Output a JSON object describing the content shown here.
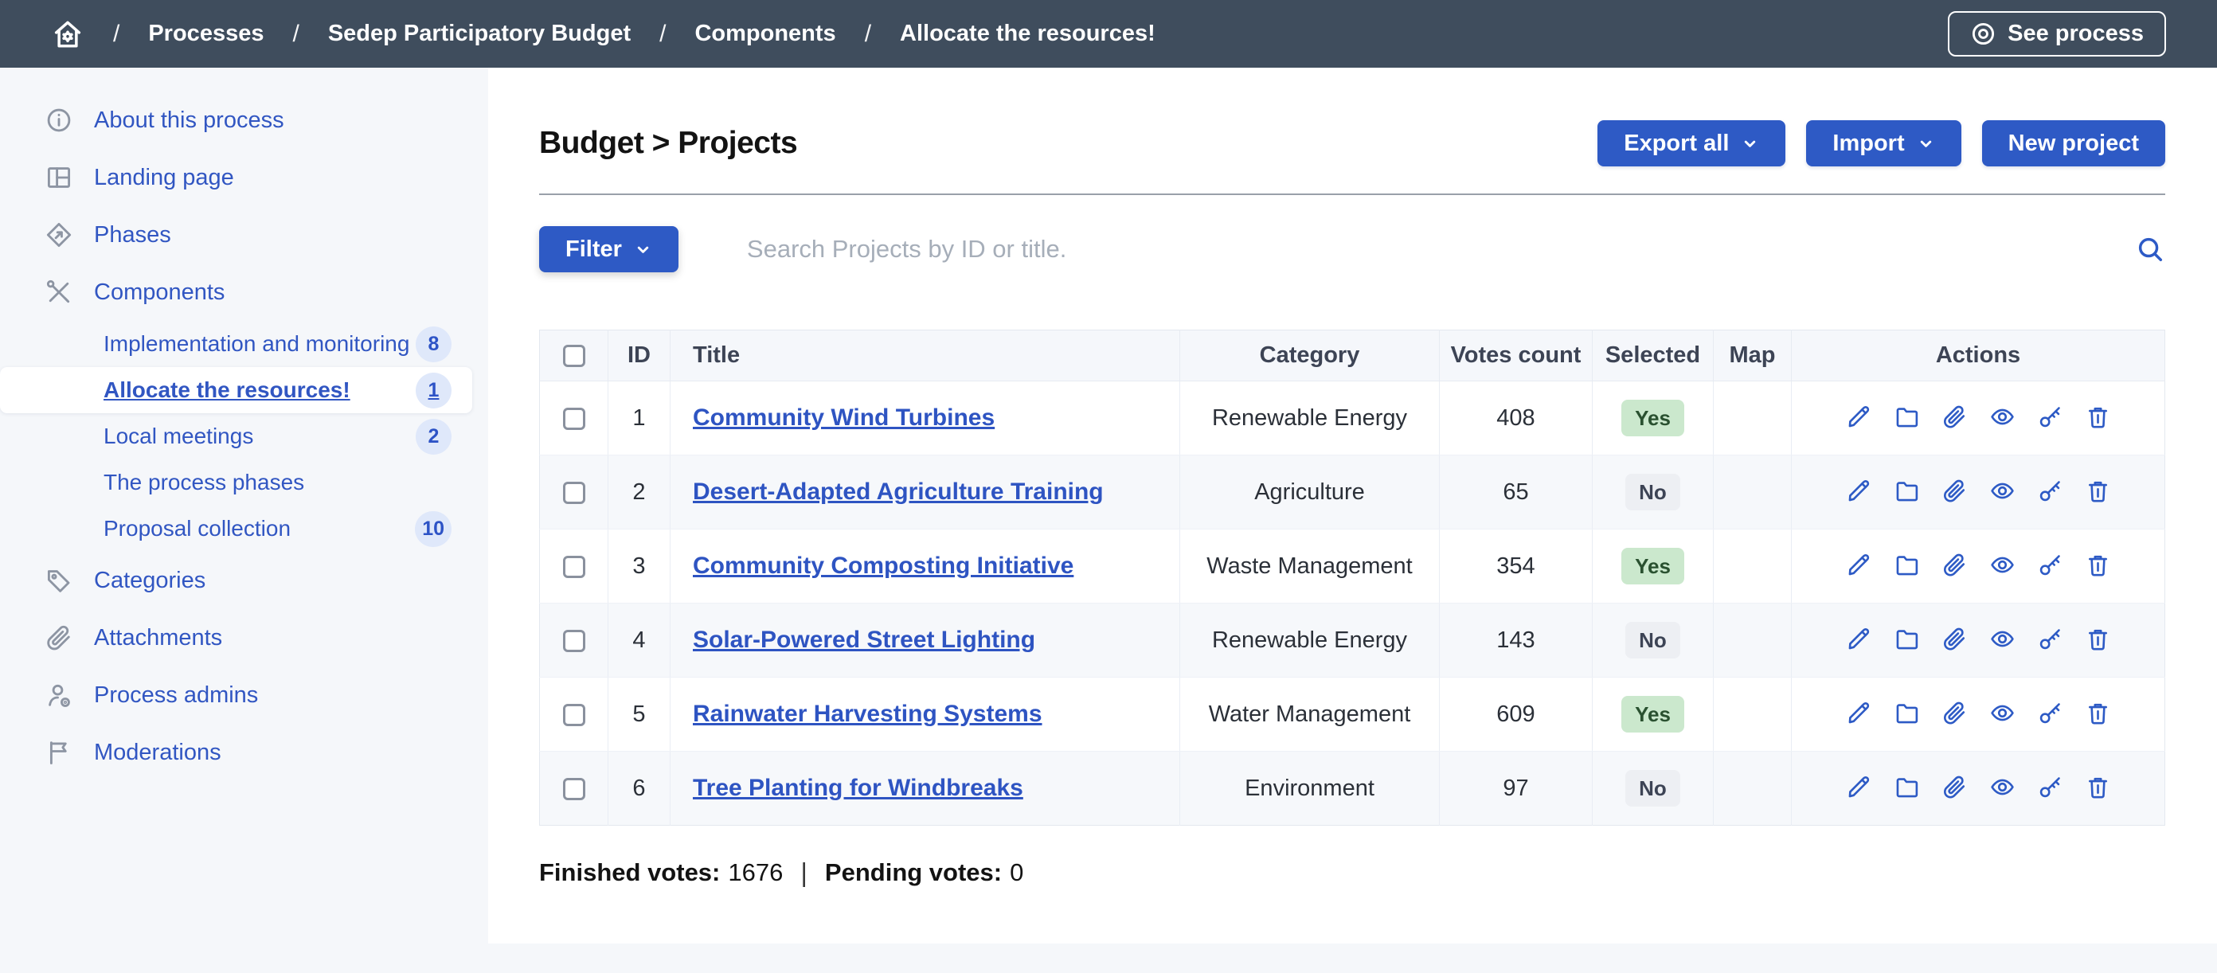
{
  "topbar": {
    "separator": "/",
    "breadcrumb": [
      "Processes",
      "Sedep Participatory Budget",
      "Components",
      "Allocate the resources!"
    ],
    "see_process_label": "See process"
  },
  "sidebar": {
    "items": [
      {
        "label": "About this process",
        "icon": "info-icon"
      },
      {
        "label": "Landing page",
        "icon": "landing-page-icon"
      },
      {
        "label": "Phases",
        "icon": "phases-icon"
      },
      {
        "label": "Components",
        "icon": "components-icon",
        "children": [
          {
            "label": "Implementation and monitoring",
            "badge": "8"
          },
          {
            "label": "Allocate the resources!",
            "badge": "1",
            "active": true
          },
          {
            "label": "Local meetings",
            "badge": "2"
          },
          {
            "label": "The process phases",
            "badge": ""
          },
          {
            "label": "Proposal collection",
            "badge": "10"
          }
        ]
      },
      {
        "label": "Categories",
        "icon": "tag-icon"
      },
      {
        "label": "Attachments",
        "icon": "paperclip-icon"
      },
      {
        "label": "Process admins",
        "icon": "user-gear-icon"
      },
      {
        "label": "Moderations",
        "icon": "flag-icon"
      }
    ]
  },
  "main": {
    "title": "Budget > Projects",
    "buttons": {
      "export": "Export all",
      "import": "Import",
      "new_project": "New project"
    },
    "filter_label": "Filter",
    "search_placeholder": "Search Projects by ID or title.",
    "table": {
      "headers": [
        "ID",
        "Title",
        "Category",
        "Votes count",
        "Selected",
        "Map",
        "Actions"
      ],
      "row_actions": [
        {
          "name": "edit",
          "icon": "pencil-icon"
        },
        {
          "name": "manage-records",
          "icon": "folder-icon"
        },
        {
          "name": "attachments",
          "icon": "paperclip-icon"
        },
        {
          "name": "preview",
          "icon": "eye-icon"
        },
        {
          "name": "permissions",
          "icon": "key-icon"
        },
        {
          "name": "delete",
          "icon": "trash-icon"
        }
      ],
      "rows": [
        {
          "id": "1",
          "title": "Community Wind Turbines",
          "category": "Renewable Energy",
          "votes": "408",
          "selected": "Yes",
          "map": ""
        },
        {
          "id": "2",
          "title": "Desert-Adapted Agriculture Training",
          "category": "Agriculture",
          "votes": "65",
          "selected": "No",
          "map": ""
        },
        {
          "id": "3",
          "title": "Community Composting Initiative",
          "category": "Waste Management",
          "votes": "354",
          "selected": "Yes",
          "map": ""
        },
        {
          "id": "4",
          "title": "Solar-Powered Street Lighting",
          "category": "Renewable Energy",
          "votes": "143",
          "selected": "No",
          "map": ""
        },
        {
          "id": "5",
          "title": "Rainwater Harvesting Systems",
          "category": "Water Management",
          "votes": "609",
          "selected": "Yes",
          "map": ""
        },
        {
          "id": "6",
          "title": "Tree Planting for Windbreaks",
          "category": "Environment",
          "votes": "97",
          "selected": "No",
          "map": ""
        }
      ]
    },
    "footer": {
      "finished_label": "Finished votes:",
      "finished_value": "1676",
      "separator": "|",
      "pending_label": "Pending votes:",
      "pending_value": "0"
    }
  },
  "colors": {
    "topbar_bg": "#3f4d5d",
    "accent_blue": "#2e5ac5",
    "link_blue": "#2e54c2",
    "sidebar_bg": "#f5f7fa",
    "active_item_bg": "#ffffff",
    "count_badge_bg": "#dfe8fa",
    "yes_badge_bg": "#cbe8cd",
    "yes_badge_text": "#2a5130",
    "no_badge_bg": "#edeff3",
    "no_badge_text": "#3d4455",
    "table_header_bg": "#f5f7fb",
    "row_stripe_bg": "#f6f8fb"
  }
}
